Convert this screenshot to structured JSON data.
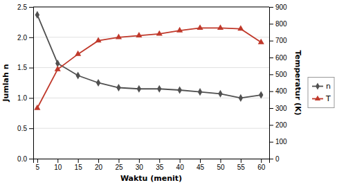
{
  "chart_data": {
    "type": "line",
    "xlabel": "Waktu (menit)",
    "ylabel": "Jumlah n",
    "y2label": "Temperatur (K)",
    "x": [
      5,
      10,
      15,
      20,
      25,
      30,
      35,
      40,
      45,
      50,
      55,
      60
    ],
    "series": [
      {
        "name": "n",
        "color": "#505050",
        "marker": "diamond",
        "axis": "y",
        "values": [
          2.37,
          1.57,
          1.37,
          1.25,
          1.17,
          1.15,
          1.15,
          1.13,
          1.1,
          1.07,
          1.0,
          1.05
        ]
      },
      {
        "name": "T",
        "color": "#c0392b",
        "marker": "triangle",
        "axis": "y2",
        "values": [
          300,
          530,
          620,
          700,
          720,
          730,
          740,
          760,
          775,
          775,
          770,
          690
        ]
      }
    ],
    "xlim": [
      4,
      62
    ],
    "xticks": [
      5,
      10,
      15,
      20,
      25,
      30,
      35,
      40,
      45,
      50,
      55,
      60
    ],
    "ylim": [
      0,
      2.5
    ],
    "yticks": [
      {
        "value": 0,
        "label": "0.0"
      },
      0.5,
      {
        "value": 1.0,
        "label": "1.0"
      },
      1.5,
      {
        "value": 2.0,
        "label": "2.0"
      },
      2.5
    ],
    "y2lim": [
      0,
      900
    ],
    "y2ticks": [
      0,
      100,
      200,
      300,
      400,
      500,
      600,
      700,
      800,
      900
    ],
    "grid": true,
    "legend": "right"
  }
}
